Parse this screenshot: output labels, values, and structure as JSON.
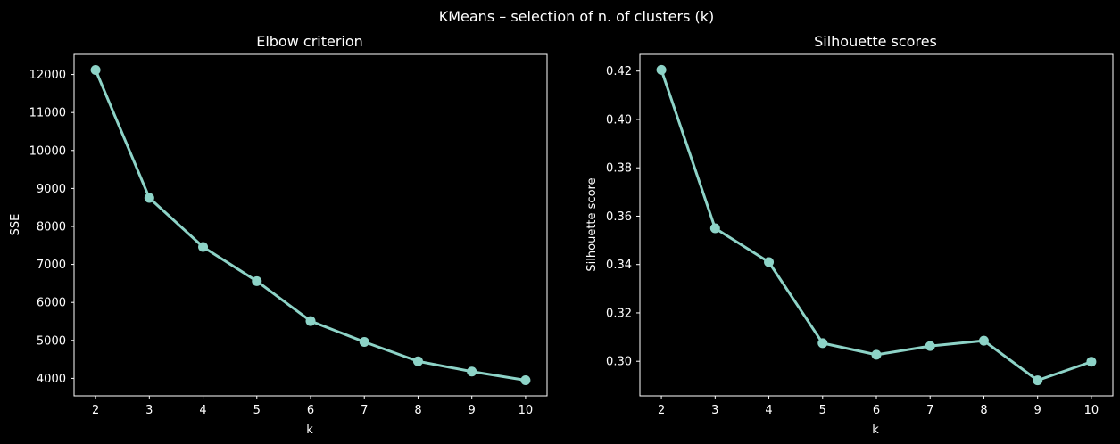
{
  "figure": {
    "suptitle": "KMeans – selection of n. of clusters (k)",
    "background": "#000000",
    "line_color": "#8dd3c7"
  },
  "chart_data": [
    {
      "type": "line",
      "title": "Elbow criterion",
      "xlabel": "k",
      "ylabel": "SSE",
      "x": [
        2,
        3,
        4,
        5,
        6,
        7,
        8,
        9,
        10
      ],
      "series": [
        {
          "values": [
            12120,
            8750,
            7460,
            6560,
            5510,
            4960,
            4450,
            4180,
            3950
          ],
          "color": "#8dd3c7",
          "marker": "circle"
        }
      ],
      "xlim": [
        1.6,
        10.4
      ],
      "ylim": [
        3540,
        12530
      ],
      "xticks": [
        2,
        3,
        4,
        5,
        6,
        7,
        8,
        9,
        10
      ],
      "yticks": [
        4000,
        5000,
        6000,
        7000,
        8000,
        9000,
        10000,
        11000,
        12000
      ],
      "grid": false
    },
    {
      "type": "line",
      "title": "Silhouette scores",
      "xlabel": "k",
      "ylabel": "Silhouette score",
      "x": [
        2,
        3,
        4,
        5,
        6,
        7,
        8,
        9,
        10
      ],
      "series": [
        {
          "values": [
            0.4205,
            0.355,
            0.341,
            0.3075,
            0.3027,
            0.3063,
            0.3085,
            0.2921,
            0.2998
          ],
          "color": "#8dd3c7",
          "marker": "circle"
        }
      ],
      "xlim": [
        1.6,
        10.4
      ],
      "ylim": [
        0.2857,
        0.4269
      ],
      "xticks": [
        2,
        3,
        4,
        5,
        6,
        7,
        8,
        9,
        10
      ],
      "yticks": [
        0.3,
        0.32,
        0.34,
        0.36,
        0.38,
        0.4,
        0.42
      ],
      "ytick_labels": [
        "0.30",
        "0.32",
        "0.34",
        "0.36",
        "0.38",
        "0.40",
        "0.42"
      ],
      "grid": false
    }
  ]
}
